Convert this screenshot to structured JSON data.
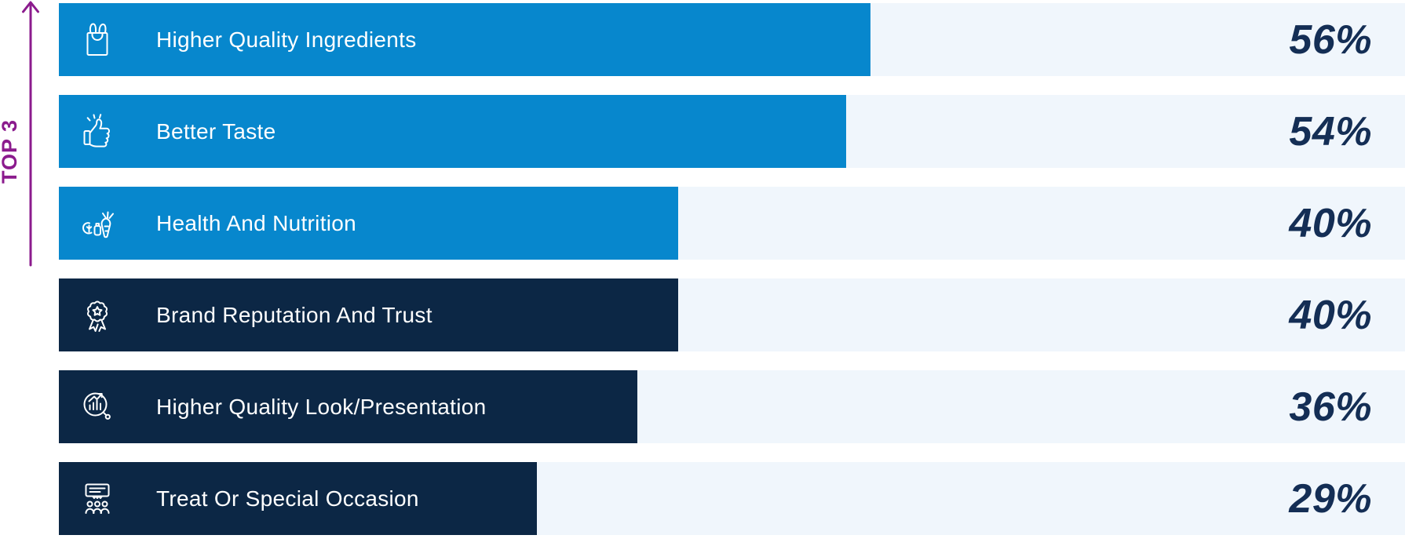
{
  "annotation": {
    "label": "TOP 3",
    "color": "#8b1b8d",
    "applies_to": "first three bars"
  },
  "colors": {
    "highlight_bar": "#0787cd",
    "default_bar": "#0c2745",
    "track": "#f0f6fc",
    "value_text": "#142e55",
    "label_text": "#ffffff"
  },
  "chart_data": {
    "type": "bar",
    "orientation": "horizontal",
    "title": "",
    "value_format": "percent",
    "legend": "none",
    "grid": false,
    "categories": [
      "Higher Quality Ingredients",
      "Better Taste",
      "Health And Nutrition",
      "Brand Reputation And Trust",
      "Higher Quality Look/Presentation",
      "Treat Or Special Occasion"
    ],
    "values": [
      56,
      54,
      40,
      40,
      36,
      29
    ],
    "value_labels": [
      "56%",
      "54%",
      "40%",
      "40%",
      "36%",
      "29%"
    ],
    "bar_display_pct_of_track": [
      60.3,
      58.5,
      46.0,
      46.0,
      43.0,
      35.5
    ],
    "highlighted": [
      true,
      true,
      true,
      false,
      false,
      false
    ],
    "icons": [
      "shopping-bag-icon",
      "thumbs-up-icon",
      "vegetables-icon",
      "award-ribbon-icon",
      "chart-magnifier-icon",
      "presentation-audience-icon"
    ]
  }
}
